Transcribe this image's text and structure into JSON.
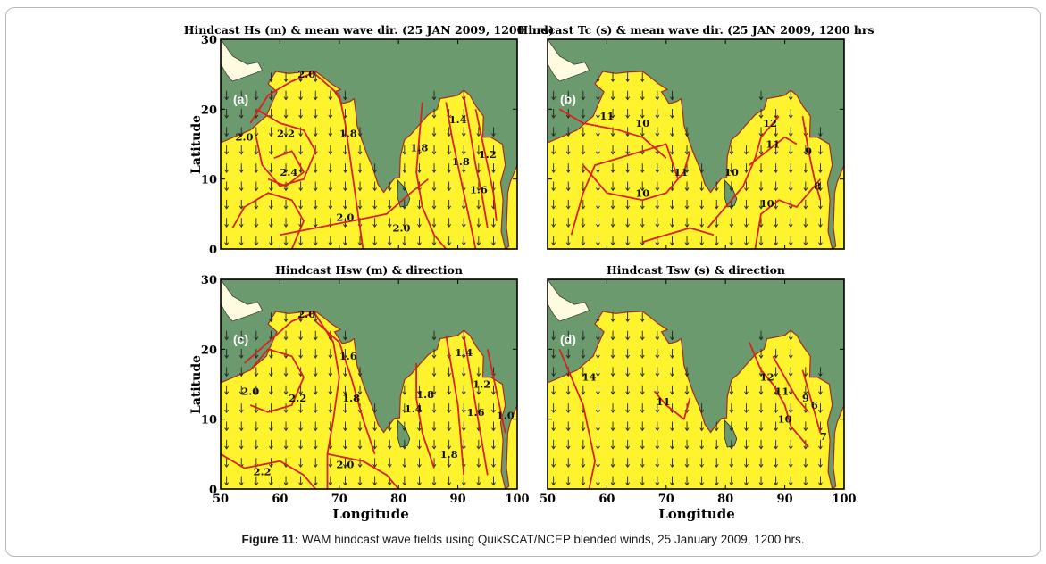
{
  "figure": {
    "caption_label": "Figure 11:",
    "caption_text": "WAM hindcast wave fields using QuikSCAT/NCEP blended winds, 25 January 2009, 1200 hrs.",
    "x_axis_label": "Longitude",
    "y_axis_label": "Latitude",
    "x_ticks": [
      "50",
      "60",
      "70",
      "80",
      "90",
      "100"
    ],
    "y_ticks": [
      "0",
      "10",
      "20",
      "30"
    ],
    "colors": {
      "land": "#6b9a6e",
      "sea": "#fff32e",
      "contour": "#d8231c",
      "arrow": "#222222",
      "frame": "#000000"
    }
  },
  "panels": [
    {
      "id": "a",
      "label": "(a)",
      "title": "Hindcast Hs (m) & mean wave dir. (25 JAN 2009, 1200 hrs)",
      "contour_labels": [
        {
          "text": "2.0",
          "lon": 64.5,
          "lat": 24.5
        },
        {
          "text": "2.0",
          "lon": 54,
          "lat": 15.5
        },
        {
          "text": "2.2",
          "lon": 61,
          "lat": 16
        },
        {
          "text": "2.4",
          "lon": 61.5,
          "lat": 10.5
        },
        {
          "text": "1.8",
          "lon": 71.5,
          "lat": 16
        },
        {
          "text": "2.0",
          "lon": 71,
          "lat": 4
        },
        {
          "text": "2.0",
          "lon": 80.5,
          "lat": 2.5
        },
        {
          "text": "1.8",
          "lon": 83.5,
          "lat": 14
        },
        {
          "text": "1.8",
          "lon": 90.5,
          "lat": 12
        },
        {
          "text": "1.4",
          "lon": 90,
          "lat": 18
        },
        {
          "text": "1.2",
          "lon": 95,
          "lat": 13
        },
        {
          "text": "1.6",
          "lon": 93.5,
          "lat": 8
        }
      ]
    },
    {
      "id": "b",
      "label": "(b)",
      "title": "Hindcast Tc (s) & mean wave dir. (25 JAN 2009, 1200 hrs",
      "contour_labels": [
        {
          "text": "11",
          "lon": 60,
          "lat": 18.5
        },
        {
          "text": "10",
          "lon": 66,
          "lat": 17.5
        },
        {
          "text": "10",
          "lon": 66,
          "lat": 7.5
        },
        {
          "text": "11",
          "lon": 72.5,
          "lat": 10.5
        },
        {
          "text": "10",
          "lon": 81,
          "lat": 10.5
        },
        {
          "text": "12",
          "lon": 87.5,
          "lat": 17.5
        },
        {
          "text": "11",
          "lon": 88,
          "lat": 14.5
        },
        {
          "text": "9",
          "lon": 94,
          "lat": 13.5
        },
        {
          "text": "10",
          "lon": 87,
          "lat": 6
        },
        {
          "text": "8",
          "lon": 95.5,
          "lat": 8.5
        }
      ]
    },
    {
      "id": "c",
      "label": "(c)",
      "title": "Hindcast Hsw (m) & direction",
      "contour_labels": [
        {
          "text": "2.0",
          "lon": 64.5,
          "lat": 24.5
        },
        {
          "text": "2.0",
          "lon": 55,
          "lat": 13.5
        },
        {
          "text": "2.2",
          "lon": 63,
          "lat": 12.5
        },
        {
          "text": "1.6",
          "lon": 71.5,
          "lat": 18.5
        },
        {
          "text": "1.8",
          "lon": 72,
          "lat": 12.5
        },
        {
          "text": "2.2",
          "lon": 57,
          "lat": 2
        },
        {
          "text": "2.0",
          "lon": 71,
          "lat": 3
        },
        {
          "text": "1.4",
          "lon": 82.5,
          "lat": 11
        },
        {
          "text": "1.8",
          "lon": 84.5,
          "lat": 13
        },
        {
          "text": "1.4",
          "lon": 91,
          "lat": 19
        },
        {
          "text": "1.2",
          "lon": 94,
          "lat": 14.5
        },
        {
          "text": "1.6",
          "lon": 93,
          "lat": 10.5
        },
        {
          "text": "1.8",
          "lon": 88.5,
          "lat": 4.5
        },
        {
          "text": "1.0",
          "lon": 98,
          "lat": 10
        }
      ]
    },
    {
      "id": "d",
      "label": "(d)",
      "title": "Hindcast Tsw (s) & direction",
      "contour_labels": [
        {
          "text": "14",
          "lon": 57,
          "lat": 15.5
        },
        {
          "text": "11",
          "lon": 69.5,
          "lat": 12
        },
        {
          "text": "12",
          "lon": 87,
          "lat": 15.5
        },
        {
          "text": "11",
          "lon": 89.5,
          "lat": 13.5
        },
        {
          "text": "10",
          "lon": 90,
          "lat": 9.5
        },
        {
          "text": "9",
          "lon": 93.5,
          "lat": 12.5
        },
        {
          "text": "6",
          "lon": 95,
          "lat": 11.5
        },
        {
          "text": "7",
          "lon": 96.5,
          "lat": 7
        }
      ]
    }
  ]
}
